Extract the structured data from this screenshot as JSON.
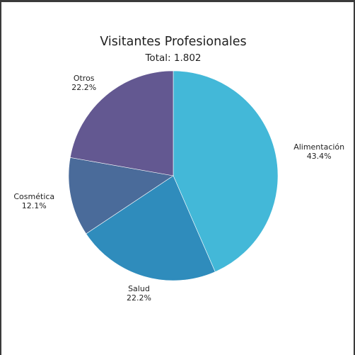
{
  "chart_data": {
    "type": "pie",
    "title": "Visitantes Profesionales",
    "subtitle": "Total: 1.802",
    "slices": [
      {
        "label": "Alimentación",
        "percent_label": "43.4%",
        "value": 43.4,
        "color": "#43b8d8"
      },
      {
        "label": "Salud",
        "percent_label": "22.2%",
        "value": 22.2,
        "color": "#2f8cbc"
      },
      {
        "label": "Cosmética",
        "percent_label": "12.1%",
        "value": 12.1,
        "color": "#4a6b9a"
      },
      {
        "label": "Otros",
        "percent_label": "22.2%",
        "value": 22.2,
        "color": "#635891"
      }
    ]
  }
}
